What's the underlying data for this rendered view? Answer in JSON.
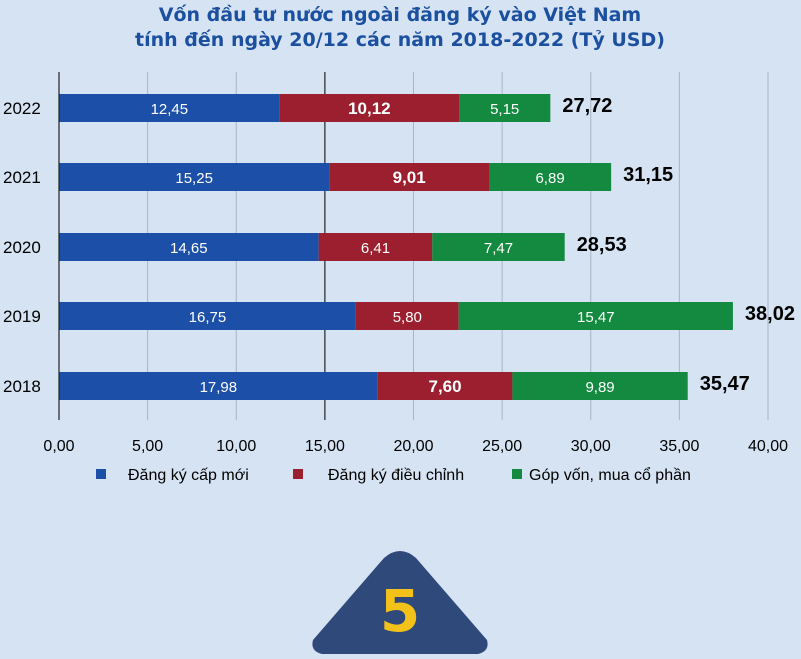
{
  "title_line1": "Vốn đầu tư nước ngoài đăng ký vào Việt Nam",
  "title_line2": "tính đến ngày 20/12 các năm 2018-2022 (Tỷ USD)",
  "badge_number": "5",
  "colors": {
    "background": "#d6e3f3",
    "new_registration": "#1b4fa8",
    "adjusted": "#9b1f2e",
    "capital_contribution": "#138a3f",
    "badge": "#2f4a7a",
    "badge_text": "#f2c21a",
    "title": "#1b4fa0"
  },
  "chart_data": {
    "type": "bar",
    "orientation": "horizontal",
    "stacked": true,
    "categories": [
      "2022",
      "2021",
      "2020",
      "2019",
      "2018"
    ],
    "series": [
      {
        "name": "Đăng ký cấp mới",
        "values": [
          12.45,
          15.25,
          14.65,
          16.75,
          17.98
        ],
        "labels": [
          "12,45",
          "15,25",
          "14,65",
          "16,75",
          "17,98"
        ]
      },
      {
        "name": "Đăng ký điều chỉnh",
        "values": [
          10.12,
          9.01,
          6.41,
          5.8,
          7.6
        ],
        "labels": [
          "10,12",
          "9,01",
          "6,41",
          "5,80",
          "7,60"
        ]
      },
      {
        "name": "Góp vốn, mua cổ phần",
        "values": [
          5.15,
          6.89,
          7.47,
          15.47,
          9.89
        ],
        "labels": [
          "5,15",
          "6,89",
          "7,47",
          "15,47",
          "9,89"
        ]
      }
    ],
    "totals": [
      27.72,
      31.15,
      28.53,
      38.02,
      35.47
    ],
    "total_labels": [
      "27,72",
      "31,15",
      "28,53",
      "38,02",
      "35,47"
    ],
    "xlim": [
      0,
      40
    ],
    "xticks": [
      0,
      5,
      10,
      15,
      20,
      25,
      30,
      35,
      40
    ],
    "xtick_labels": [
      "0,00",
      "5,00",
      "10,00",
      "15,00",
      "20,00",
      "25,00",
      "30,00",
      "35,00",
      "40,00"
    ],
    "grid": true,
    "legend_position": "bottom"
  }
}
